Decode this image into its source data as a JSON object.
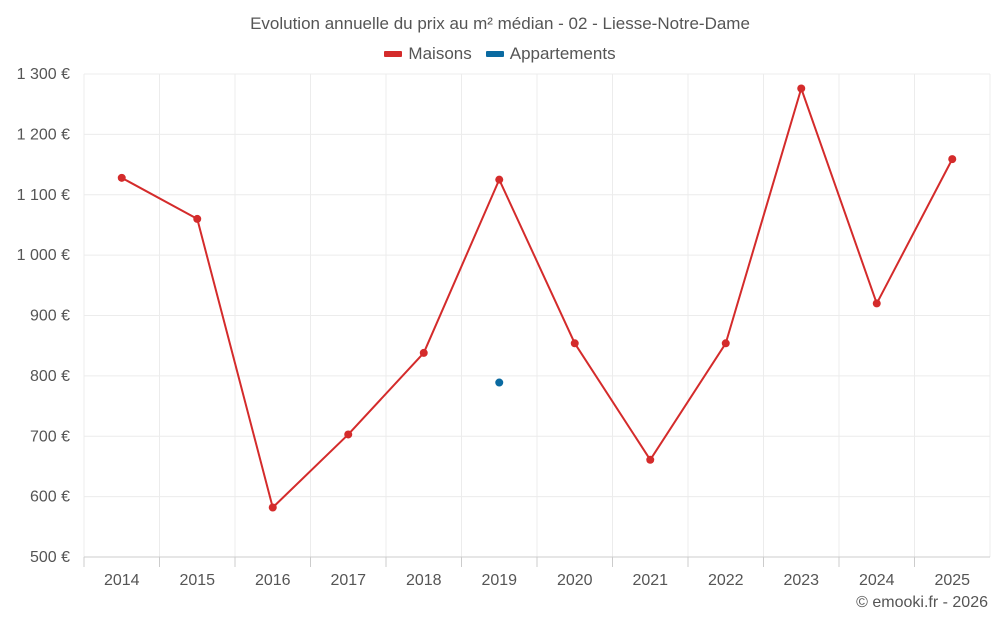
{
  "chart_data": {
    "type": "line",
    "title": "Evolution annuelle du prix au m² médian - 02 - Liesse-Notre-Dame",
    "categories": [
      "2014",
      "2015",
      "2016",
      "2017",
      "2018",
      "2019",
      "2020",
      "2021",
      "2022",
      "2023",
      "2024",
      "2025"
    ],
    "series": [
      {
        "name": "Maisons",
        "color": "#d42b2b",
        "values": [
          1128,
          1060,
          582,
          703,
          838,
          1125,
          854,
          661,
          854,
          1276,
          920,
          1159
        ]
      },
      {
        "name": "Appartements",
        "color": "#0a6aa1",
        "values": [
          null,
          null,
          null,
          null,
          null,
          789,
          null,
          null,
          null,
          null,
          null,
          null
        ]
      }
    ],
    "ylim": [
      500,
      1300
    ],
    "yticks": [
      500,
      600,
      700,
      800,
      900,
      1000,
      1100,
      1200,
      1300
    ],
    "ytick_labels": [
      "500 €",
      "600 €",
      "700 €",
      "800 €",
      "900 €",
      "1 000 €",
      "1 100 €",
      "1 200 €",
      "1 300 €"
    ],
    "grid": true,
    "legend": "top-center",
    "xlabel": "",
    "ylabel": ""
  },
  "legend": {
    "items": [
      {
        "label": "Maisons",
        "color": "#d42b2b"
      },
      {
        "label": "Appartements",
        "color": "#0a6aa1"
      }
    ]
  },
  "credits": "© emooki.fr - 2026"
}
